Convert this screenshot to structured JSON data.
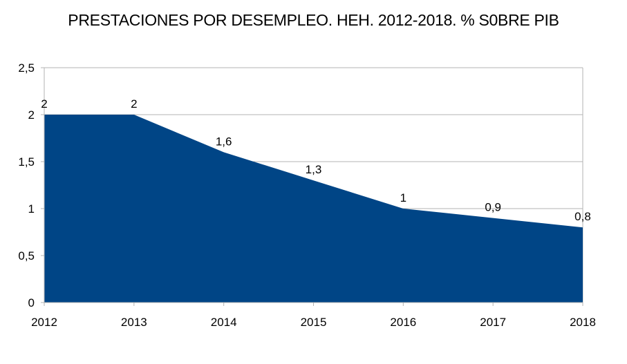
{
  "chart_data": {
    "type": "area",
    "title": "PRESTACIONES POR DESEMPLEO. HEH. 2012-2018. % S0BRE PIB",
    "xlabel": "",
    "ylabel": "",
    "categories": [
      "2012",
      "2013",
      "2014",
      "2015",
      "2016",
      "2017",
      "2018"
    ],
    "series": [
      {
        "values": [
          2,
          2,
          1.6,
          1.3,
          1,
          0.9,
          0.8
        ],
        "data_labels": [
          "2",
          "2",
          "1,6",
          "1,3",
          "1",
          "0,9",
          "0,8"
        ],
        "color": "#004586"
      }
    ],
    "ylim": [
      0,
      2.5
    ],
    "yticks": [
      0,
      0.5,
      1,
      1.5,
      2,
      2.5
    ],
    "ytick_labels": [
      "0",
      "0,5",
      "1",
      "1,5",
      "2",
      "2,5"
    ],
    "grid": true,
    "legend": "none"
  }
}
